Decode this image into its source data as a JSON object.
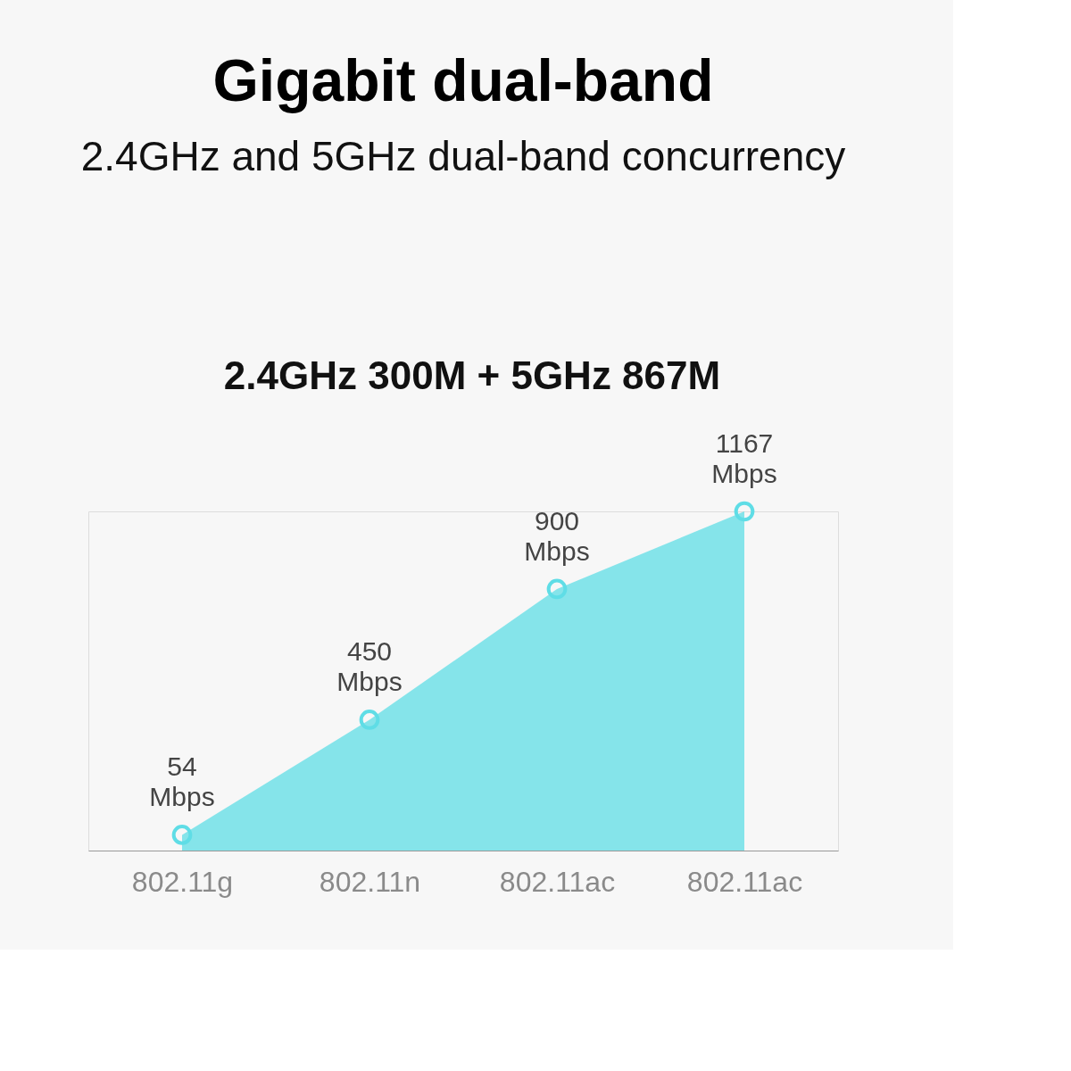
{
  "chart_data": {
    "type": "area",
    "title": "Gigabit dual-band",
    "subtitle": "2.4GHz and 5GHz dual-band concurrency",
    "annotations": [
      "2.4GHz 300M + 5GHz 867M"
    ],
    "categories": [
      "802.11g",
      "802.11n",
      "802.11ac",
      "802.11ac"
    ],
    "series": [
      {
        "color": "#5fdde6",
        "values": [
          54,
          450,
          900,
          1167
        ],
        "value_labels": [
          "54\nMbps",
          "450\nMbps",
          "900\nMbps",
          "1167\nMbps"
        ]
      }
    ],
    "marker": "circle",
    "grid": false,
    "tick_labels": "x"
  }
}
